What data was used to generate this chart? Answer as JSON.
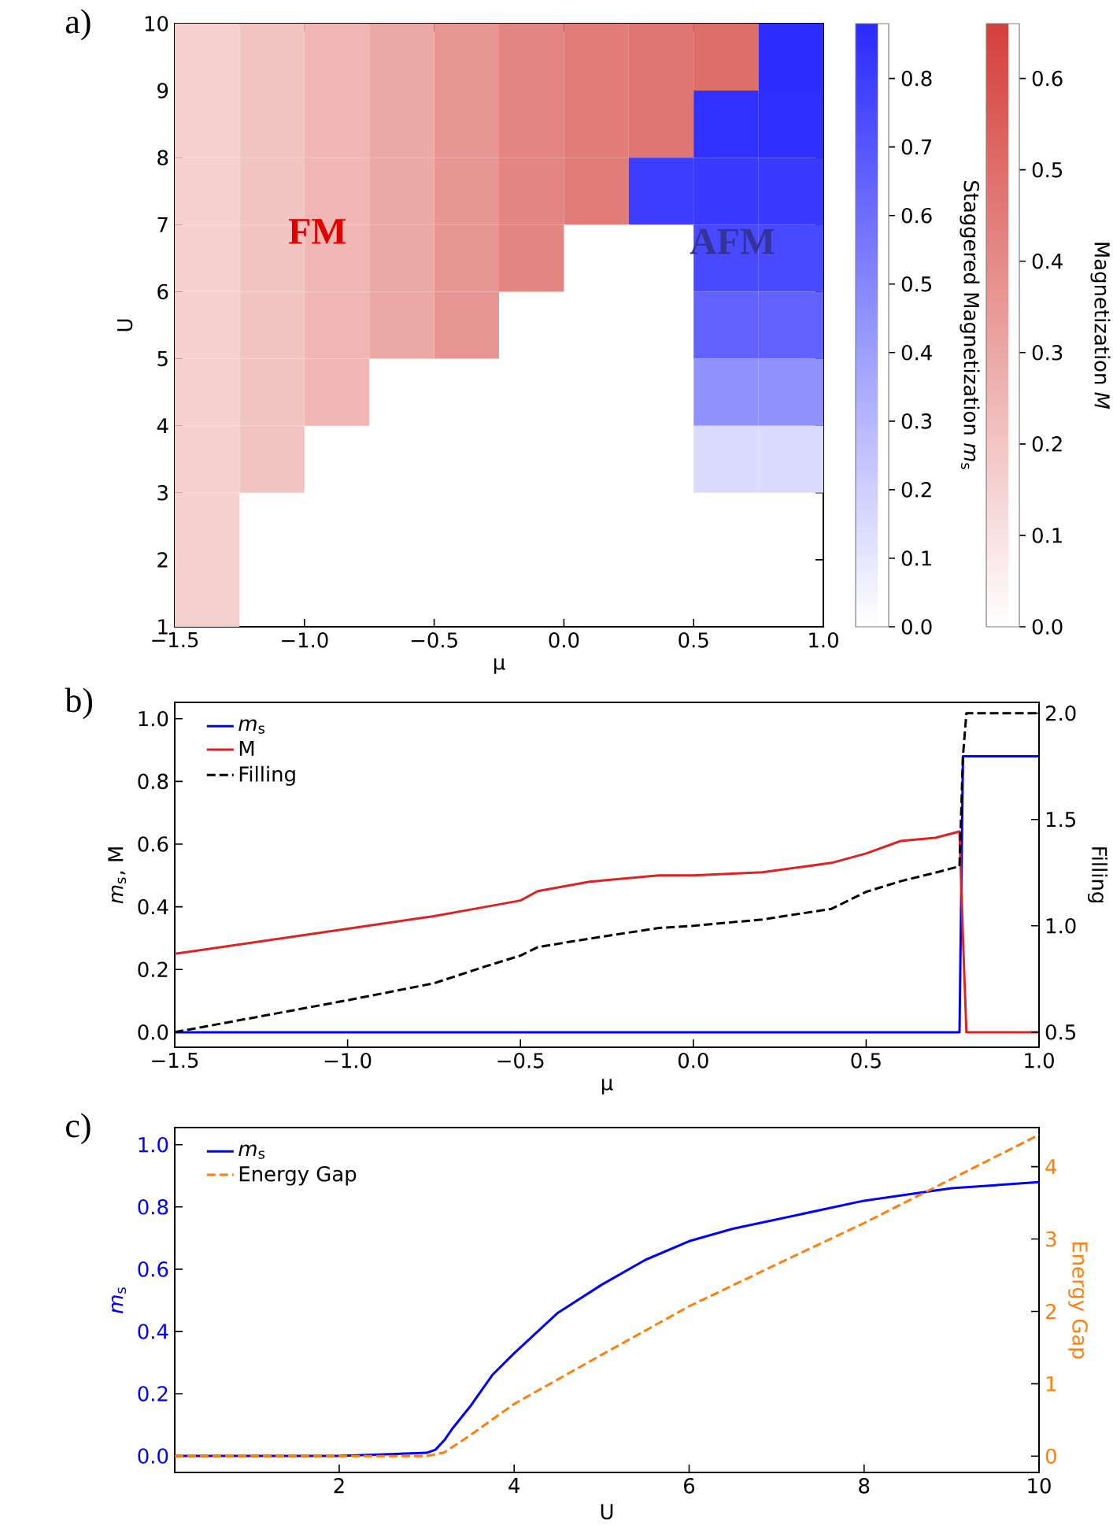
{
  "chart_data": [
    {
      "type": "heatmap",
      "x": [
        -1.375,
        -1.125,
        -0.875,
        -0.625,
        -0.375,
        -0.125,
        0.125,
        0.375,
        0.625,
        0.875
      ],
      "y": [
        9.5,
        8.5,
        7.5,
        6.5,
        5.5,
        4.5,
        3.5,
        2.5,
        1.5
      ],
      "xlim": [
        -1.5,
        1.0
      ],
      "ylim": [
        1,
        10
      ],
      "xticks": [
        {
          "value": -1.5,
          "label": "−1.5"
        },
        {
          "value": -1.0,
          "label": "−1.0"
        },
        {
          "value": -0.5,
          "label": "−0.5"
        },
        {
          "value": 0,
          "label": "0.0"
        },
        {
          "value": 0.5,
          "label": "0.5"
        },
        {
          "value": 1.0,
          "label": "1.0"
        }
      ],
      "yticks": [
        {
          "value": 1,
          "label": "1"
        },
        {
          "value": 2,
          "label": "2"
        },
        {
          "value": 3,
          "label": "3"
        },
        {
          "value": 4,
          "label": "4"
        },
        {
          "value": 5,
          "label": "5"
        },
        {
          "value": 6,
          "label": "6"
        },
        {
          "value": 7,
          "label": "7"
        },
        {
          "value": 8,
          "label": "8"
        },
        {
          "value": 9,
          "label": "9"
        },
        {
          "value": 10,
          "label": "10"
        }
      ],
      "xlabel": "μ",
      "ylabel": "U",
      "clabel": "Magnetization *M*",
      "clim": [
        0,
        0.66
      ],
      "cticks": [
        {
          "value": 0,
          "label": "0.0"
        },
        {
          "value": 0.1,
          "label": "0.1"
        },
        {
          "value": 0.2,
          "label": "0.2"
        },
        {
          "value": 0.3,
          "label": "0.3"
        },
        {
          "value": 0.4,
          "label": "0.4"
        },
        {
          "value": 0.5,
          "label": "0.5"
        },
        {
          "value": 0.6,
          "label": "0.6"
        }
      ],
      "cells": [
        [
          0.16,
          0.2,
          0.25,
          0.3,
          0.36,
          0.42,
          0.45,
          0.47,
          0.5,
          null
        ],
        [
          0.16,
          0.2,
          0.25,
          0.3,
          0.36,
          0.42,
          0.45,
          0.47,
          null,
          null
        ],
        [
          0.16,
          0.2,
          0.25,
          0.3,
          0.36,
          0.42,
          0.45,
          null,
          null,
          null
        ],
        [
          0.16,
          0.2,
          0.25,
          0.3,
          0.36,
          0.42,
          null,
          null,
          null,
          null
        ],
        [
          0.16,
          0.2,
          0.25,
          0.3,
          0.36,
          null,
          null,
          null,
          null,
          null
        ],
        [
          0.16,
          0.2,
          0.25,
          null,
          null,
          null,
          null,
          null,
          null,
          null
        ],
        [
          0.16,
          0.2,
          null,
          null,
          null,
          null,
          null,
          null,
          null,
          null
        ],
        [
          0.16,
          null,
          null,
          null,
          null,
          null,
          null,
          null,
          null,
          null
        ],
        [
          0.16,
          null,
          null,
          null,
          null,
          null,
          null,
          null,
          null,
          null
        ]
      ],
      "annotations": [
        "a)",
        "FM"
      ]
    },
    {
      "type": "heatmap",
      "x": [
        0.375,
        0.625,
        0.875
      ],
      "y": [
        9.5,
        8.5,
        7.5,
        6.5,
        5.5,
        4.5,
        3.5
      ],
      "xlim": [
        -1.5,
        1.0
      ],
      "ylim": [
        1,
        10
      ],
      "tick_labels": false,
      "clabel": "Staggered Magnetization *m*$_{s}$",
      "clim": [
        0,
        0.88
      ],
      "cticks": [
        {
          "value": 0,
          "label": "0.0"
        },
        {
          "value": 0.1,
          "label": "0.1"
        },
        {
          "value": 0.2,
          "label": "0.2"
        },
        {
          "value": 0.3,
          "label": "0.3"
        },
        {
          "value": 0.4,
          "label": "0.4"
        },
        {
          "value": 0.5,
          "label": "0.5"
        },
        {
          "value": 0.6,
          "label": "0.6"
        },
        {
          "value": 0.7,
          "label": "0.7"
        },
        {
          "value": 0.8,
          "label": "0.8"
        }
      ],
      "cells": [
        [
          null,
          null,
          0.87
        ],
        [
          null,
          0.85,
          0.86
        ],
        [
          0.8,
          0.82,
          0.82
        ],
        [
          null,
          0.75,
          0.75
        ],
        [
          null,
          0.65,
          0.65
        ],
        [
          null,
          0.45,
          0.45
        ],
        [
          null,
          0.15,
          0.15
        ]
      ],
      "annotations": [
        "AFM"
      ]
    },
    {
      "type": "line",
      "xlabel": "μ",
      "ylabel": "*m*$_{s}$, M",
      "y2label": "Filling",
      "xlim": [
        -1.5,
        1.0
      ],
      "ylim": [
        -0.048,
        1.052
      ],
      "y2lim": [
        0.429,
        2.051
      ],
      "xticks": [
        {
          "value": -1.5,
          "label": "−1.5"
        },
        {
          "value": -1.0,
          "label": "−1.0"
        },
        {
          "value": -0.5,
          "label": "−0.5"
        },
        {
          "value": 0,
          "label": "0.0"
        },
        {
          "value": 0.5,
          "label": "0.5"
        },
        {
          "value": 1.0,
          "label": "1.0"
        }
      ],
      "yticks": [
        {
          "value": 0,
          "label": "0.0"
        },
        {
          "value": 0.2,
          "label": "0.2"
        },
        {
          "value": 0.4,
          "label": "0.4"
        },
        {
          "value": 0.6,
          "label": "0.6"
        },
        {
          "value": 0.8,
          "label": "0.8"
        },
        {
          "value": 1.0,
          "label": "1.0"
        }
      ],
      "y2ticks": [
        {
          "value": 0.5,
          "label": "0.5"
        },
        {
          "value": 1.0,
          "label": "1.0"
        },
        {
          "value": 1.5,
          "label": "1.5"
        },
        {
          "value": 2.0,
          "label": "2.0"
        }
      ],
      "legend": "top left",
      "x": [
        -1.5,
        -1.0,
        -0.75,
        -0.6,
        -0.5,
        -0.45,
        -0.3,
        -0.1,
        0,
        0.2,
        0.4,
        0.5,
        0.6,
        0.7,
        0.77,
        0.78,
        0.79,
        0.85,
        1.0
      ],
      "series": [
        {
          "name": "*m*$_{s}$",
          "color": "#0000ff",
          "values": [
            0,
            0,
            0,
            0,
            0,
            0,
            0,
            0,
            0,
            0,
            0,
            0,
            0,
            0,
            0,
            0.88,
            0.88,
            0.88,
            0.88
          ]
        },
        {
          "name": "M",
          "color": "#dd2222",
          "values": [
            0.25,
            0.33,
            0.37,
            0.4,
            0.42,
            0.45,
            0.48,
            0.5,
            0.5,
            0.51,
            0.54,
            0.57,
            0.61,
            0.62,
            0.64,
            0.3,
            0,
            0,
            0
          ]
        },
        {
          "name": "Filling",
          "color": "#000000",
          "line_style": "dashed",
          "axis": "y2",
          "values": [
            0.5,
            0.65,
            0.73,
            0.81,
            0.86,
            0.9,
            0.94,
            0.99,
            1.0,
            1.03,
            1.08,
            1.16,
            1.21,
            1.25,
            1.28,
            1.8,
            2.0,
            2.0,
            2.0
          ]
        }
      ],
      "annotations": [
        "b)"
      ]
    },
    {
      "type": "line",
      "xlabel": "U",
      "ylabel": "*m*$_{s}$",
      "y2label": "Energy Gap",
      "xlim": [
        0.12,
        10
      ],
      "ylim": [
        -0.053,
        1.055
      ],
      "y2lim": [
        -0.226,
        4.54
      ],
      "xticks": [
        {
          "value": 2,
          "label": "2"
        },
        {
          "value": 4,
          "label": "4"
        },
        {
          "value": 6,
          "label": "6"
        },
        {
          "value": 8,
          "label": "8"
        },
        {
          "value": 10,
          "label": "10"
        }
      ],
      "yticks": [
        {
          "value": 0,
          "label": "0.0"
        },
        {
          "value": 0.2,
          "label": "0.2"
        },
        {
          "value": 0.4,
          "label": "0.4"
        },
        {
          "value": 0.6,
          "label": "0.6"
        },
        {
          "value": 0.8,
          "label": "0.8"
        },
        {
          "value": 1.0,
          "label": "1.0"
        }
      ],
      "y2ticks": [
        {
          "value": 0,
          "label": "0"
        },
        {
          "value": 1,
          "label": "1"
        },
        {
          "value": 2,
          "label": "2"
        },
        {
          "value": 3,
          "label": "3"
        },
        {
          "value": 4,
          "label": "4"
        }
      ],
      "legend": "top left",
      "series": [
        {
          "name": "*m*$_{s}$",
          "color": "#0000ff",
          "x": [
            0.12,
            1,
            2,
            3,
            3.1,
            3.2,
            3.3,
            3.5,
            3.75,
            4,
            4.5,
            5,
            5.5,
            6,
            6.5,
            7,
            7.5,
            8,
            8.5,
            9,
            9.5,
            10
          ],
          "values": [
            0,
            0,
            0,
            0.01,
            0.02,
            0.05,
            0.09,
            0.16,
            0.26,
            0.33,
            0.46,
            0.55,
            0.63,
            0.69,
            0.73,
            0.76,
            0.79,
            0.82,
            0.84,
            0.86,
            0.87,
            0.88
          ]
        },
        {
          "name": "Energy Gap",
          "color": "#ff7f0e",
          "line_style": "dashed",
          "axis": "y2",
          "x": [
            0.12,
            3.0,
            3.2,
            3.5,
            4,
            5,
            6,
            7,
            8,
            9,
            10
          ],
          "values": [
            0,
            0,
            0.05,
            0.29,
            0.72,
            1.4,
            2.07,
            2.65,
            3.22,
            3.83,
            4.44
          ]
        }
      ],
      "annotations": [
        "c)"
      ]
    }
  ]
}
